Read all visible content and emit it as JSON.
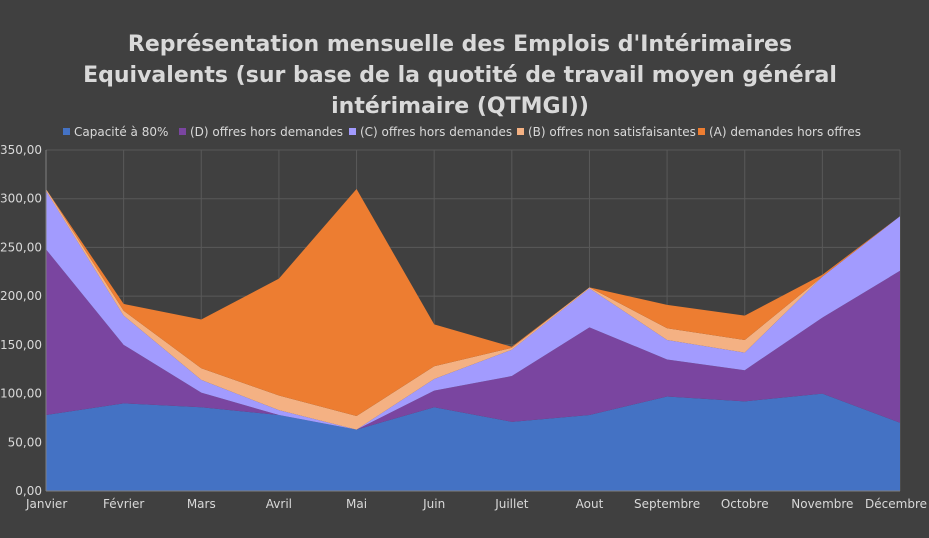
{
  "chart_data": {
    "type": "area",
    "stacked": true,
    "title": "Représentation mensuelle des Emplois d'Intérimaires Equivalents (sur base de la quotité de travail moyen général intérimaire (QTMGI))",
    "title_lines": [
      "Représentation mensuelle des Emplois d'Intérimaires",
      "Equivalents (sur base de la quotité de travail moyen général",
      "intérimaire (QTMGI))"
    ],
    "categories": [
      "Janvier",
      "Février",
      "Mars",
      "Avril",
      "Mai",
      "Juin",
      "Juillet",
      "Aout",
      "Septembre",
      "Octobre",
      "Novembre",
      "Décembre"
    ],
    "series": [
      {
        "name": "Capacité à 80%",
        "color": "#4472c4",
        "values": [
          78,
          90,
          86,
          78,
          63,
          86,
          71,
          78,
          97,
          92,
          100,
          70
        ]
      },
      {
        "name": "(D) offres hors demandes",
        "color": "#7a45a0",
        "values": [
          170,
          60,
          15,
          0,
          0,
          17,
          47,
          90,
          38,
          32,
          78,
          156
        ]
      },
      {
        "name": "(C) offres hors demandes",
        "color": "#a29bfe",
        "values": [
          60,
          30,
          13,
          5,
          0,
          12,
          27,
          40,
          20,
          18,
          42,
          56
        ]
      },
      {
        "name": "(B) offres non satisfaisantes",
        "color": "#f4b183",
        "values": [
          2,
          5,
          12,
          15,
          14,
          13,
          2,
          1,
          12,
          13,
          0,
          0
        ]
      },
      {
        "name": "(A) demandes hors offres",
        "color": "#ed7d31",
        "values": [
          0,
          7,
          50,
          120,
          233,
          43,
          1,
          0,
          24,
          25,
          2,
          0
        ]
      }
    ],
    "ylim": [
      0,
      350
    ],
    "yticks": [
      0,
      50,
      100,
      150,
      200,
      250,
      300,
      350
    ],
    "ytick_labels": [
      "0,00",
      "50,00",
      "100,00",
      "150,00",
      "200,00",
      "250,00",
      "300,00",
      "350,00"
    ],
    "grid": true,
    "legend_position": "top"
  }
}
